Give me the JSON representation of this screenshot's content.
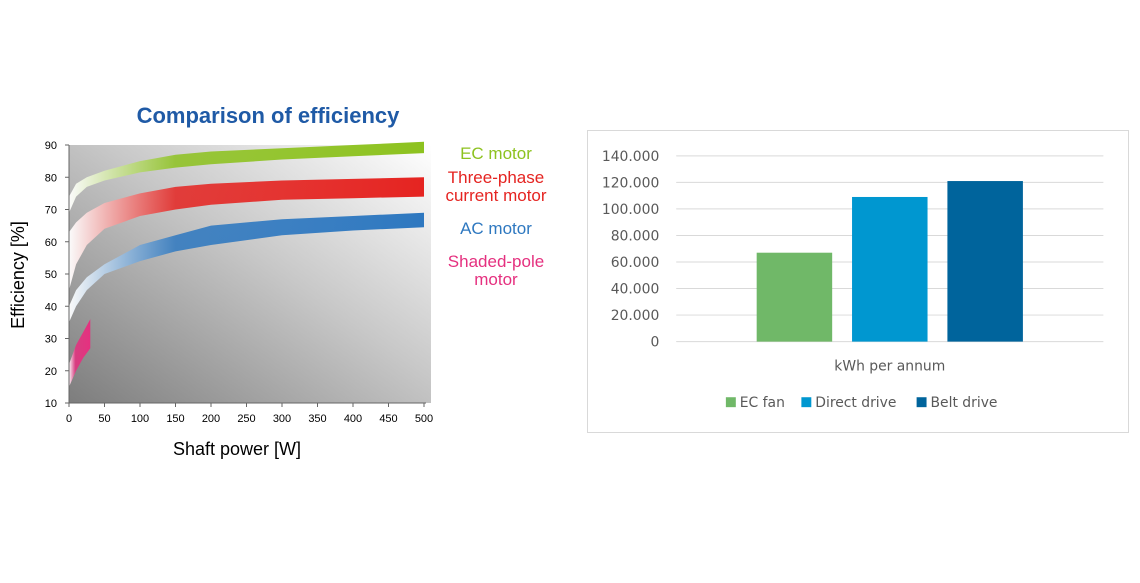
{
  "chart_data": [
    {
      "type": "area",
      "title": "Comparison of efficiency",
      "xlabel": "Shaft power [W]",
      "ylabel": "Efficiency [%]",
      "xlim": [
        0,
        500
      ],
      "ylim": [
        10,
        90
      ],
      "x_ticks": [
        "0",
        "50",
        "100",
        "150",
        "200",
        "250",
        "300",
        "350",
        "400",
        "450",
        "500"
      ],
      "y_ticks": [
        "10",
        "20",
        "30",
        "40",
        "50",
        "60",
        "70",
        "80",
        "90"
      ],
      "series": [
        {
          "name": "EC motor",
          "color": "#8dc21f",
          "x": [
            0,
            10,
            25,
            50,
            100,
            150,
            200,
            300,
            400,
            500
          ],
          "lower": [
            69,
            74,
            77,
            79,
            81.5,
            83,
            84,
            85.5,
            86.5,
            87.5
          ],
          "upper": [
            74,
            78,
            80,
            82,
            85,
            87,
            88,
            89,
            90,
            91
          ]
        },
        {
          "name": "Three-phase current motor",
          "color": "#e52421",
          "x": [
            0,
            10,
            25,
            50,
            100,
            150,
            200,
            300,
            400,
            500
          ],
          "lower": [
            45,
            53,
            59,
            64,
            68,
            70,
            71.5,
            73,
            73.5,
            74
          ],
          "upper": [
            63,
            66,
            69,
            72,
            75,
            77,
            78,
            79,
            79.5,
            80
          ]
        },
        {
          "name": "AC motor",
          "color": "#2e78c0",
          "x": [
            0,
            10,
            25,
            50,
            100,
            150,
            200,
            300,
            400,
            500
          ],
          "lower": [
            35,
            40,
            45,
            50,
            54,
            57,
            59,
            62,
            63.5,
            64.5
          ],
          "upper": [
            40,
            45,
            49,
            53,
            59,
            62,
            65,
            67,
            68,
            69
          ]
        },
        {
          "name": "Shaded-pole motor",
          "color": "#e5307f",
          "x": [
            0,
            10,
            20,
            30
          ],
          "lower": [
            15,
            20,
            24,
            27
          ],
          "upper": [
            22,
            28,
            32,
            36
          ]
        }
      ]
    },
    {
      "type": "bar",
      "categories": [
        "kWh per annum"
      ],
      "series": [
        {
          "name": "EC fan",
          "values": [
            67000
          ],
          "color": "#70b868"
        },
        {
          "name": "Direct drive",
          "values": [
            109000
          ],
          "color": "#0097d0"
        },
        {
          "name": "Belt drive",
          "values": [
            121000
          ],
          "color": "#00649c"
        }
      ],
      "ylim": [
        0,
        140000
      ],
      "y_ticks": [
        "0",
        "20.000",
        "40.000",
        "60.000",
        "80.000",
        "100.000",
        "120.000",
        "140.000"
      ],
      "legend": "bottom",
      "grid": true
    }
  ]
}
